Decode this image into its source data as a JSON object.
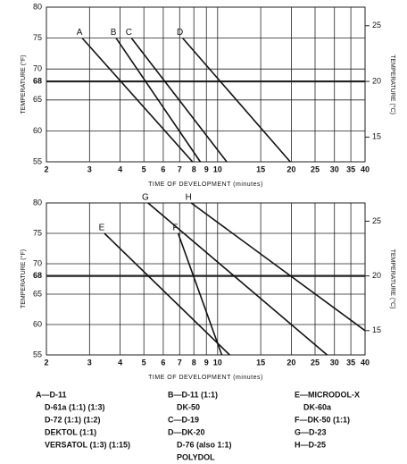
{
  "chart_data": [
    {
      "type": "line",
      "xlabel": "TIME OF DEVELOPMENT (minutes)",
      "ylabel": "TEMPERATURE (°F)",
      "y2label": "TEMPERATURE (°C)",
      "log_x": true,
      "grid": true,
      "highlight_y": 68,
      "xlim": [
        2,
        40
      ],
      "xticks": [
        2,
        3,
        4,
        5,
        6,
        7,
        8,
        9,
        10,
        15,
        20,
        25,
        30,
        35,
        40
      ],
      "ylim": [
        55,
        80
      ],
      "yticks": [
        55,
        60,
        65,
        68,
        70,
        75,
        80
      ],
      "y2lim": [
        12.78,
        26.67
      ],
      "y2ticks": [
        15,
        20,
        25
      ],
      "series": [
        {
          "name": "A",
          "color": "#111",
          "x": [
            2.8,
            7.9
          ],
          "values": [
            75,
            55
          ]
        },
        {
          "name": "B",
          "color": "#111",
          "x": [
            3.85,
            8.5
          ],
          "values": [
            75,
            55
          ]
        },
        {
          "name": "C",
          "color": "#111",
          "x": [
            4.45,
            10.9
          ],
          "values": [
            75,
            55
          ]
        },
        {
          "name": "D",
          "color": "#111",
          "x": [
            7.2,
            19.8
          ],
          "values": [
            75,
            55
          ]
        }
      ]
    },
    {
      "type": "line",
      "xlabel": "TIME OF DEVELOPMENT (minutes)",
      "ylabel": "TEMPERATURE (°F)",
      "y2label": "TEMPERATURE (°C)",
      "log_x": true,
      "grid": true,
      "highlight_y": 68,
      "xlim": [
        2,
        40
      ],
      "xticks": [
        2,
        3,
        4,
        5,
        6,
        7,
        8,
        9,
        10,
        15,
        20,
        25,
        30,
        35,
        40
      ],
      "ylim": [
        55,
        80
      ],
      "yticks": [
        55,
        60,
        65,
        68,
        70,
        75,
        80
      ],
      "y2lim": [
        12.78,
        26.67
      ],
      "y2ticks": [
        15,
        20,
        25
      ],
      "series": [
        {
          "name": "E",
          "color": "#111",
          "x": [
            3.45,
            11.2
          ],
          "values": [
            75,
            55
          ]
        },
        {
          "name": "F",
          "color": "#111",
          "x": [
            6.9,
            10.4
          ],
          "values": [
            75,
            55
          ]
        },
        {
          "name": "G",
          "color": "#111",
          "x": [
            5.2,
            28
          ],
          "values": [
            80,
            55
          ]
        },
        {
          "name": "H",
          "color": "#111",
          "x": [
            7.8,
            40
          ],
          "values": [
            80,
            59
          ]
        }
      ]
    }
  ],
  "key": {
    "columns": [
      [
        "A—D-11",
        "D-61a (1:1) (1:3)",
        "D-72 (1:1) (1:2)",
        "DEKTOL (1:1)",
        "VERSATOL (1:3) (1:15)"
      ],
      [
        "B—D-11 (1:1)",
        "DK-50",
        "C—D-19",
        "D—DK-20",
        "D-76 (also 1:1)",
        "POLYDOL"
      ],
      [
        "E—MICRODOL-X",
        "DK-60a",
        "F—DK-50 (1:1)",
        "G—D-23",
        "H—D-25"
      ]
    ]
  }
}
